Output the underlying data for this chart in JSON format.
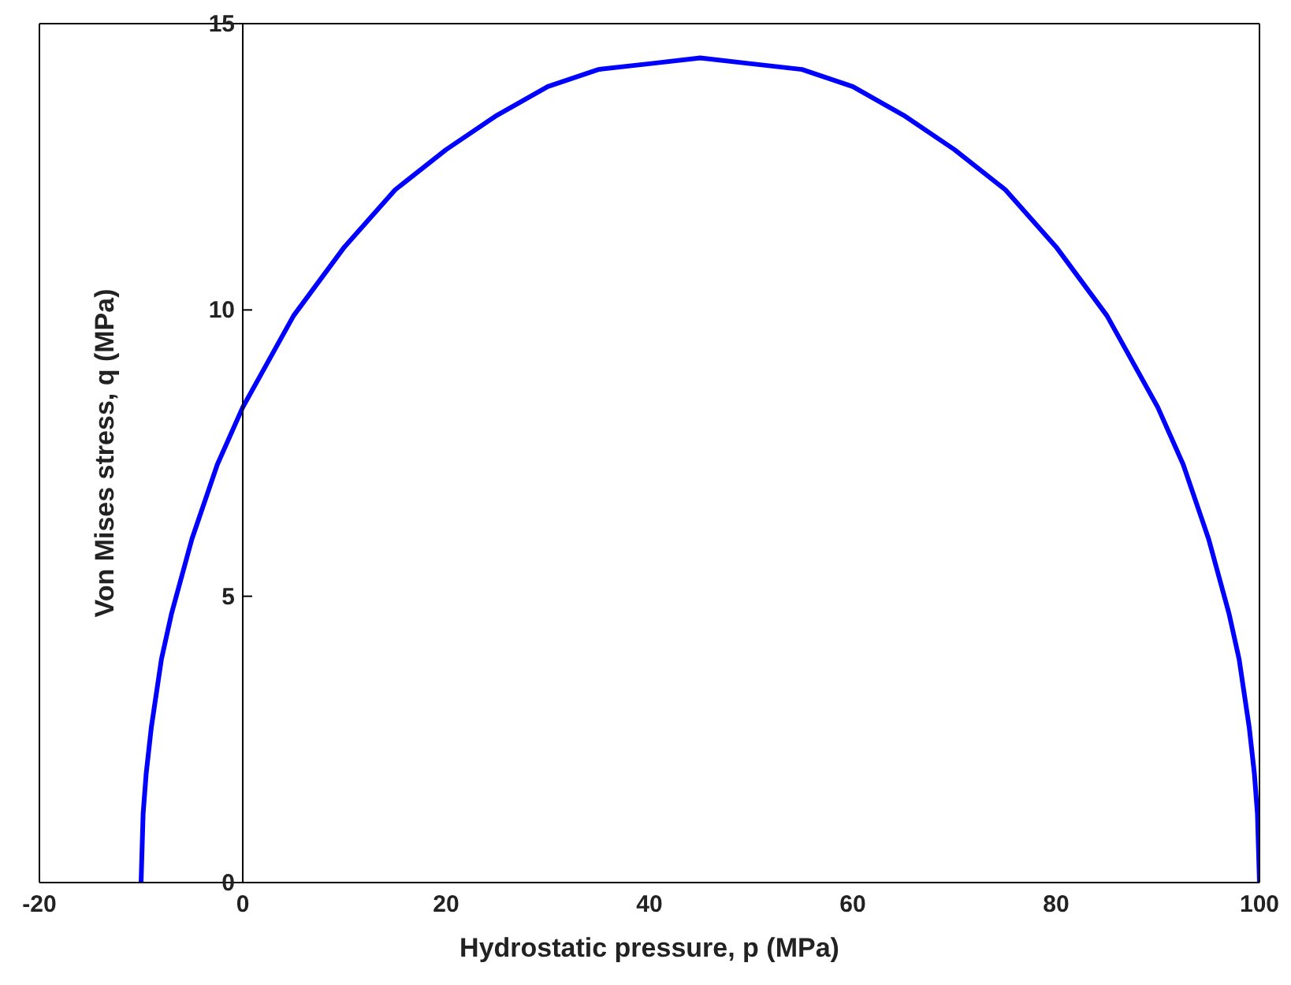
{
  "chart_data": {
    "type": "line",
    "xlabel": "Hydrostatic pressure, p (MPa)",
    "ylabel": "Von Mises stress, q (MPa)",
    "x": [
      -10,
      -9.8,
      -9.5,
      -9,
      -8,
      -7,
      -5,
      -2.5,
      0,
      5,
      10,
      15,
      20,
      25,
      30,
      35,
      40,
      45,
      50,
      55,
      60,
      65,
      70,
      75,
      80,
      85,
      90,
      92.5,
      95,
      97,
      98,
      99,
      99.5,
      99.8,
      100
    ],
    "series": [
      {
        "color": "#0000ff",
        "values": [
          0,
          1.2,
          1.9,
          2.7,
          3.9,
          4.7,
          6.0,
          7.3,
          8.3,
          9.9,
          11.1,
          12.1,
          12.8,
          13.4,
          13.9,
          14.2,
          14.3,
          14.4,
          14.3,
          14.2,
          13.9,
          13.4,
          12.8,
          12.1,
          11.1,
          9.9,
          8.3,
          7.3,
          6.0,
          4.7,
          3.9,
          2.7,
          1.9,
          1.2,
          0
        ]
      }
    ],
    "xlim": [
      -20,
      100
    ],
    "xticks": [
      -20,
      0,
      20,
      40,
      60,
      80,
      100
    ],
    "ylim": [
      0,
      15
    ],
    "yticks": [
      0,
      5,
      10,
      15
    ],
    "grid": false,
    "legend": false,
    "marker": "none",
    "line_style": "solid"
  }
}
